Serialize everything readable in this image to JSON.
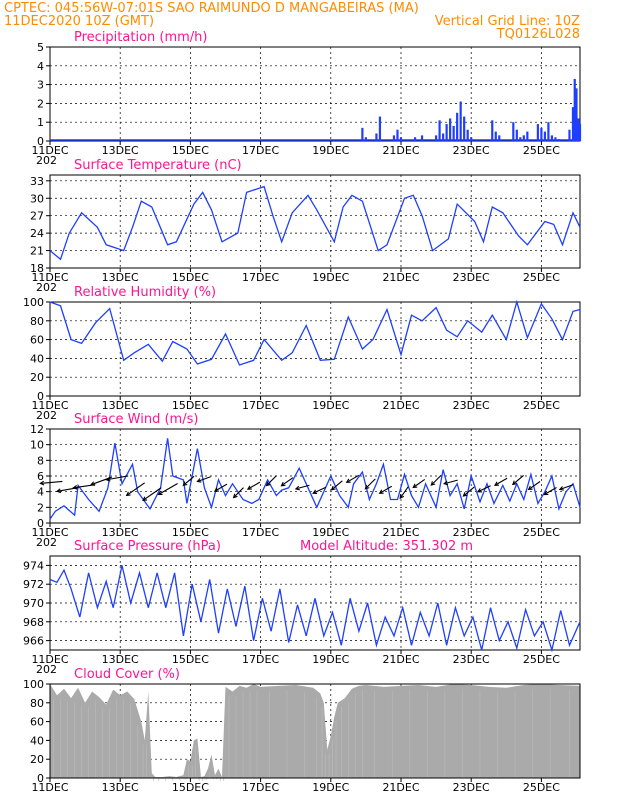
{
  "header": {
    "line1_left": "CPTEC:   045:56W-07:01S  SAO RAIMUNDO D MANGABEIRAS (MA)",
    "line2_left": "11DEC2020 10Z (GMT)",
    "line2_right": "Vertical Grid Line: 10Z",
    "line3_right": "TQ0126L028"
  },
  "colors": {
    "header": "#ff8c00",
    "title": "#ff1493",
    "series": "#1f3fff",
    "cloud": "#aaaaaa",
    "precip": "#1f3fff"
  },
  "x_axis": {
    "tick_labels": [
      "11DEC",
      "13DEC",
      "15DEC",
      "17DEC",
      "19DEC",
      "21DEC",
      "23DEC",
      "25DEC"
    ],
    "tick_days": [
      0,
      2,
      4,
      6,
      8,
      10,
      12,
      14
    ],
    "hidden_year_label": "202"
  },
  "chart_data": [
    {
      "id": "precip",
      "type": "bar",
      "title": "Precipitation (mm/h)",
      "ylim": [
        0,
        5
      ],
      "yticks": [
        0,
        1,
        2,
        3,
        4,
        5
      ],
      "x": [
        8.9,
        9.0,
        9.3,
        9.4,
        9.8,
        9.9,
        10.0,
        10.4,
        10.6,
        11.0,
        11.1,
        11.2,
        11.3,
        11.4,
        11.5,
        11.6,
        11.7,
        11.8,
        11.9,
        12.0,
        12.6,
        12.7,
        12.8,
        13.2,
        13.3,
        13.4,
        13.5,
        13.6,
        13.9,
        14.0,
        14.1,
        14.2,
        14.3,
        14.4,
        14.5,
        14.8,
        14.9,
        14.95,
        15.0,
        15.05,
        15.1
      ],
      "values": [
        0.7,
        0.2,
        0.4,
        1.3,
        0.3,
        0.6,
        0.2,
        0.2,
        0.3,
        0.3,
        1.1,
        0.4,
        0.9,
        1.2,
        0.8,
        1.5,
        2.1,
        1.3,
        0.6,
        0.2,
        1.1,
        0.5,
        0.3,
        1.0,
        0.6,
        0.2,
        0.3,
        0.5,
        0.9,
        0.7,
        0.5,
        1.0,
        0.3,
        0.2,
        0.1,
        0.6,
        1.8,
        3.3,
        2.8,
        1.2,
        0.9
      ]
    },
    {
      "id": "temp",
      "type": "line",
      "title": "Surface Temperature (nC)",
      "ylim": [
        18,
        34
      ],
      "yticks": [
        18,
        21,
        24,
        27,
        30,
        33
      ],
      "x": [
        0,
        0.3,
        0.55,
        0.9,
        1.35,
        1.6,
        2.1,
        2.35,
        2.6,
        2.9,
        3.35,
        3.6,
        4.1,
        4.35,
        4.6,
        4.9,
        5.35,
        5.6,
        6.1,
        6.35,
        6.6,
        6.9,
        7.35,
        7.6,
        8.1,
        8.35,
        8.6,
        8.9,
        9.35,
        9.6,
        10.1,
        10.35,
        10.6,
        10.9,
        11.35,
        11.6,
        12.1,
        12.35,
        12.6,
        12.9,
        13.35,
        13.6,
        14.1,
        14.35,
        14.6,
        14.9,
        15.1
      ],
      "values": [
        21,
        19.5,
        24,
        27.5,
        25,
        22,
        21,
        25,
        29.5,
        28.5,
        22,
        22.5,
        29,
        31,
        28,
        22.5,
        24,
        31,
        32,
        27,
        22.5,
        27.5,
        30.5,
        28,
        22.5,
        28.5,
        30.5,
        29.5,
        21,
        22,
        30,
        30.5,
        27,
        21,
        23,
        29,
        26,
        22.5,
        28.5,
        27.5,
        23.5,
        22,
        26,
        25.5,
        22,
        27.5,
        25
      ]
    },
    {
      "id": "rh",
      "type": "line",
      "title": "Relative Humidity (%)",
      "ylim": [
        0,
        100
      ],
      "yticks": [
        0,
        20,
        40,
        60,
        80,
        100
      ],
      "x": [
        0,
        0.3,
        0.6,
        0.9,
        1.3,
        1.7,
        2.1,
        2.4,
        2.8,
        3.2,
        3.5,
        3.9,
        4.2,
        4.6,
        5,
        5.4,
        5.8,
        6.1,
        6.6,
        6.9,
        7.3,
        7.7,
        8.1,
        8.5,
        8.9,
        9.2,
        9.6,
        10,
        10.3,
        10.6,
        11,
        11.3,
        11.6,
        11.9,
        12.3,
        12.6,
        13,
        13.3,
        13.6,
        14,
        14.3,
        14.6,
        14.9,
        15.1
      ],
      "values": [
        100,
        96,
        60,
        56,
        78,
        93,
        38,
        46,
        55,
        37,
        58,
        50,
        34,
        39,
        66,
        33,
        38,
        60,
        38,
        46,
        75,
        38,
        39,
        84,
        50,
        60,
        92,
        44,
        86,
        80,
        94,
        70,
        63,
        80,
        68,
        86,
        60,
        100,
        62,
        98,
        82,
        60,
        90,
        92
      ]
    },
    {
      "id": "wind",
      "type": "line",
      "title": "Surface Wind (m/s)",
      "ylim": [
        0,
        12
      ],
      "yticks": [
        0,
        2,
        4,
        6,
        8,
        10,
        12
      ],
      "x": [
        0,
        0.15,
        0.4,
        0.7,
        0.8,
        1.1,
        1.4,
        1.65,
        1.85,
        2.05,
        2.35,
        2.5,
        2.85,
        3.15,
        3.35,
        3.5,
        3.8,
        3.9,
        4.2,
        4.4,
        4.6,
        4.8,
        5.0,
        5.2,
        5.35,
        5.5,
        5.75,
        5.95,
        6.2,
        6.45,
        6.6,
        6.8,
        7.1,
        7.35,
        7.6,
        7.8,
        8.0,
        8.25,
        8.5,
        8.65,
        8.9,
        9.1,
        9.3,
        9.5,
        9.7,
        9.9,
        10.1,
        10.3,
        10.5,
        10.7,
        11.0,
        11.2,
        11.4,
        11.6,
        11.8,
        12.0,
        12.25,
        12.45,
        12.65,
        12.9,
        13.1,
        13.3,
        13.5,
        13.7,
        13.9,
        14.1,
        14.3,
        14.5,
        14.7,
        14.9,
        15.1
      ],
      "values": [
        0.5,
        1.5,
        2.2,
        1,
        4.8,
        3,
        1.5,
        4.5,
        10.2,
        5,
        7.5,
        4,
        1.8,
        4.5,
        10.8,
        6,
        5.5,
        2.5,
        9.5,
        4.5,
        2,
        5.5,
        3.5,
        5,
        4,
        3,
        2.5,
        3,
        5.5,
        3.5,
        4.2,
        4.5,
        7,
        4.5,
        2,
        4,
        6,
        3.5,
        2,
        5,
        6.5,
        3,
        5,
        7.5,
        3,
        3,
        6.2,
        3.5,
        2,
        5,
        2,
        6.8,
        3.5,
        5,
        1.8,
        6,
        2.7,
        5,
        2.5,
        4.8,
        2.8,
        5,
        3,
        6.2,
        2.5,
        4,
        6,
        1.8,
        4,
        5,
        2
      ],
      "arrow_angle_deg": [
        185,
        190,
        188,
        200,
        190,
        215,
        215,
        210,
        220,
        200,
        210,
        225,
        210,
        225,
        215,
        195,
        205,
        220,
        210,
        225,
        210,
        235,
        215,
        225,
        195,
        220,
        205,
        210,
        220,
        215,
        210,
        200
      ]
    },
    {
      "id": "pressure",
      "type": "line",
      "title": "Surface Pressure (hPa)",
      "note": "Model Altitude: 351.302 m",
      "ylim": [
        965,
        975
      ],
      "yticks": [
        966,
        968,
        970,
        972,
        974
      ],
      "x": [
        0,
        0.2,
        0.4,
        0.6,
        0.85,
        1.1,
        1.35,
        1.6,
        1.8,
        2.05,
        2.3,
        2.55,
        2.8,
        3.05,
        3.3,
        3.55,
        3.8,
        4.05,
        4.3,
        4.55,
        4.8,
        5.05,
        5.3,
        5.55,
        5.8,
        6.05,
        6.3,
        6.55,
        6.8,
        7.05,
        7.3,
        7.55,
        7.8,
        8.05,
        8.3,
        8.55,
        8.8,
        9.05,
        9.3,
        9.55,
        9.8,
        10.05,
        10.3,
        10.55,
        10.8,
        11.05,
        11.3,
        11.55,
        11.8,
        12.05,
        12.3,
        12.55,
        12.8,
        13.05,
        13.3,
        13.55,
        13.8,
        14.05,
        14.3,
        14.55,
        14.8,
        15.1
      ],
      "values": [
        972.5,
        972.2,
        973.5,
        971.5,
        968.5,
        973.2,
        969.5,
        972.3,
        969.5,
        974,
        970,
        973.2,
        969.5,
        973.2,
        969.5,
        973.2,
        966.5,
        972,
        968,
        972.5,
        966.8,
        971.5,
        967.5,
        971.8,
        966,
        970.5,
        967,
        971.5,
        965.8,
        969.8,
        966.5,
        970.5,
        966.5,
        969,
        965.5,
        970.5,
        967,
        970,
        965.5,
        968.5,
        966.5,
        969.5,
        965.5,
        969,
        966.5,
        970,
        965.5,
        969.5,
        966.5,
        968.5,
        965,
        969.5,
        966,
        968,
        965.2,
        969.3,
        966.5,
        968,
        965,
        969.2,
        965.5,
        968
      ]
    },
    {
      "id": "cloud",
      "type": "area",
      "title": "Cloud Cover (%)",
      "ylim": [
        0,
        100
      ],
      "yticks": [
        0,
        20,
        40,
        60,
        80,
        100
      ],
      "x": [
        0,
        0.2,
        0.4,
        0.6,
        0.8,
        1.0,
        1.2,
        1.4,
        1.6,
        1.8,
        2.0,
        2.2,
        2.4,
        2.6,
        2.7,
        2.8,
        2.9,
        3.0,
        3.2,
        3.4,
        3.6,
        3.8,
        3.9,
        4.0,
        4.1,
        4.2,
        4.3,
        4.4,
        4.5,
        4.6,
        4.7,
        4.8,
        4.9,
        5.0,
        5.2,
        5.4,
        5.6,
        5.8,
        6.0,
        6.5,
        7.0,
        7.5,
        7.7,
        7.8,
        7.9,
        8.0,
        8.1,
        8.2,
        8.4,
        8.6,
        8.8,
        9.0,
        9.5,
        10.0,
        10.5,
        11.0,
        11.5,
        12.0,
        12.5,
        13.0,
        13.5,
        14.0,
        14.5,
        15.1
      ],
      "values": [
        100,
        88,
        95,
        85,
        96,
        80,
        92,
        86,
        78,
        94,
        88,
        92,
        84,
        60,
        40,
        92,
        5,
        1,
        1,
        2,
        1,
        3,
        20,
        18,
        40,
        42,
        1,
        2,
        10,
        25,
        3,
        10,
        1,
        97,
        92,
        98,
        96,
        100,
        97,
        98,
        99,
        96,
        90,
        80,
        30,
        45,
        65,
        80,
        85,
        95,
        98,
        99,
        97,
        98,
        99,
        97,
        100,
        99,
        97,
        96,
        99,
        100,
        99,
        98
      ]
    }
  ]
}
